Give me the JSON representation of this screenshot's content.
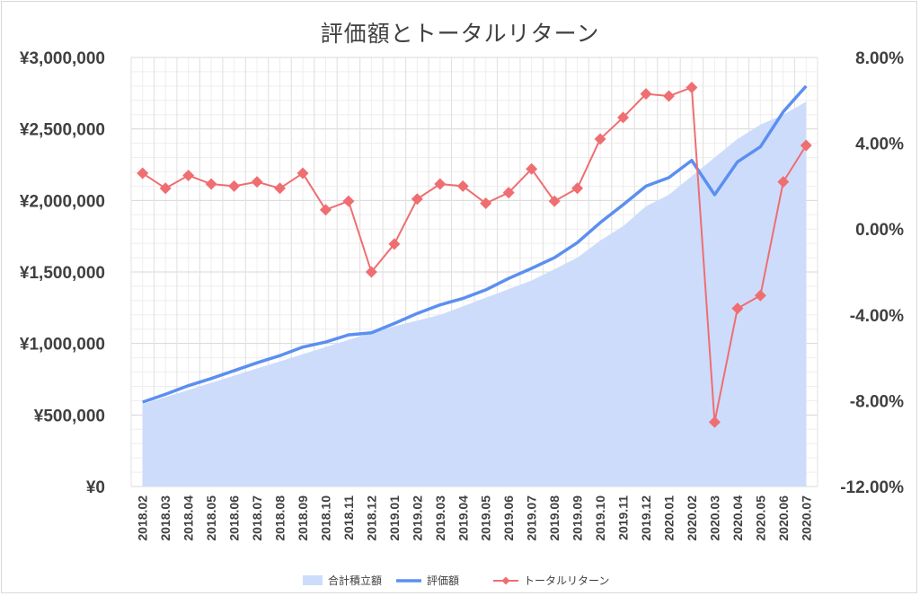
{
  "chart_data": {
    "type": "line",
    "title": "評価額とトータルリターン",
    "categories": [
      "2018.02",
      "2018.03",
      "2018.04",
      "2018.05",
      "2018.06",
      "2018.07",
      "2018.08",
      "2018.09",
      "2018.10",
      "2018.11",
      "2018.12",
      "2019.01",
      "2019.02",
      "2019.03",
      "2019.04",
      "2019.05",
      "2019.06",
      "2019.07",
      "2019.08",
      "2019.09",
      "2019.10",
      "2019.11",
      "2019.12",
      "2020.01",
      "2020.02",
      "2020.03",
      "2020.04",
      "2020.05",
      "2020.06",
      "2020.07"
    ],
    "y_left": {
      "ylim": [
        0,
        3000000
      ],
      "ticks": [
        "¥0",
        "¥500,000",
        "¥1,000,000",
        "¥1,500,000",
        "¥2,000,000",
        "¥2,500,000",
        "¥3,000,000"
      ]
    },
    "y_right": {
      "ylim": [
        -12,
        8
      ],
      "ticks": [
        "-12.00%",
        "-8.00%",
        "-4.00%",
        "0.00%",
        "4.00%",
        "8.00%"
      ]
    },
    "grid": true,
    "legend_position": "bottom",
    "series": [
      {
        "name": "合計積立額",
        "type": "area",
        "axis": "left",
        "color": "#cddcfb",
        "values": [
          575000,
          625000,
          675000,
          725000,
          775000,
          825000,
          875000,
          925000,
          975000,
          1025000,
          1075000,
          1120000,
          1160000,
          1200000,
          1260000,
          1320000,
          1380000,
          1440000,
          1520000,
          1600000,
          1720000,
          1820000,
          1960000,
          2040000,
          2170000,
          2300000,
          2430000,
          2530000,
          2600000,
          2690000
        ]
      },
      {
        "name": "評価額",
        "type": "line",
        "axis": "left",
        "color": "#5b8ff0",
        "values": [
          590000,
          645000,
          705000,
          755000,
          810000,
          865000,
          915000,
          975000,
          1010000,
          1060000,
          1075000,
          1140000,
          1210000,
          1270000,
          1315000,
          1375000,
          1455000,
          1525000,
          1600000,
          1705000,
          1845000,
          1970000,
          2100000,
          2160000,
          2280000,
          2040000,
          2270000,
          2375000,
          2620000,
          2800000
        ]
      },
      {
        "name": "トータルリターン",
        "type": "line",
        "axis": "right",
        "marker": "diamond",
        "color": "#ef6e72",
        "values": [
          2.6,
          1.9,
          2.5,
          2.1,
          2.0,
          2.2,
          1.9,
          2.6,
          0.9,
          1.3,
          -2.0,
          -0.7,
          1.4,
          2.1,
          2.0,
          1.2,
          1.7,
          2.8,
          1.3,
          1.9,
          4.2,
          5.2,
          6.3,
          6.2,
          6.6,
          -9.0,
          -3.7,
          -3.1,
          2.2,
          3.9
        ]
      }
    ]
  }
}
